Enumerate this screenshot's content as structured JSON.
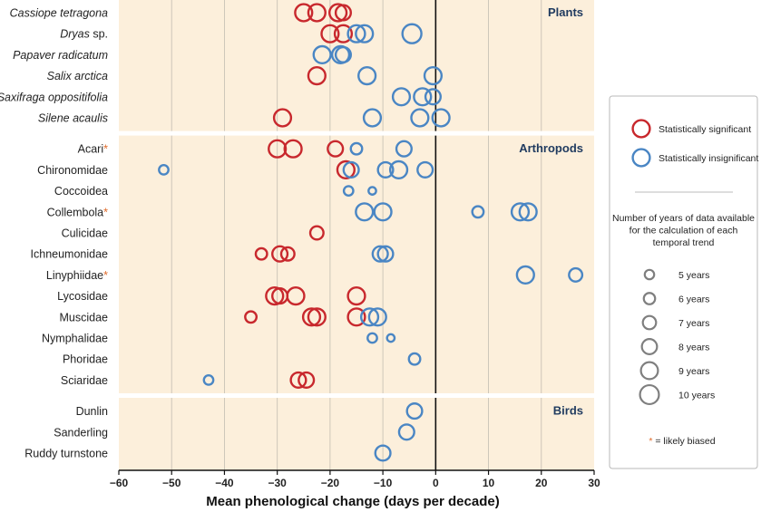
{
  "chart_data": {
    "type": "scatter",
    "xlabel": "Mean phenological change (days per decade)",
    "xlim": [
      -60,
      30
    ],
    "xticks": [
      "−60",
      "−50",
      "−40",
      "−30",
      "−20",
      "−10",
      "0",
      "10",
      "20",
      "30"
    ],
    "xtick_values": [
      -60,
      -50,
      -40,
      -30,
      -20,
      -10,
      0,
      10,
      20,
      30
    ],
    "colors": {
      "significant": "#c8282d",
      "insignificant": "#4a86c4",
      "asterisk": "#e06c2c",
      "group_title": "#1f3a5f",
      "panel_bg": "#fcefdb"
    },
    "groups": [
      {
        "title": "Plants",
        "taxa": [
          {
            "name": "Cassiope tetragona",
            "italic": true,
            "biased": false,
            "points": [
              {
                "x": -25,
                "sig": true,
                "years": 9
              },
              {
                "x": -22.5,
                "sig": true,
                "years": 9
              },
              {
                "x": -18.5,
                "sig": true,
                "years": 9
              },
              {
                "x": -17.5,
                "sig": true,
                "years": 8
              }
            ]
          },
          {
            "name": "Dryas",
            "suffix": " sp.",
            "italic": true,
            "biased": false,
            "points": [
              {
                "x": -20,
                "sig": true,
                "years": 9
              },
              {
                "x": -17.5,
                "sig": true,
                "years": 9
              },
              {
                "x": -15,
                "sig": false,
                "years": 9
              },
              {
                "x": -13.5,
                "sig": false,
                "years": 9
              },
              {
                "x": -4.5,
                "sig": false,
                "years": 10
              }
            ]
          },
          {
            "name": "Papaver radicatum",
            "italic": true,
            "biased": false,
            "points": [
              {
                "x": -21.5,
                "sig": false,
                "years": 9
              },
              {
                "x": -18,
                "sig": false,
                "years": 9
              },
              {
                "x": -17.5,
                "sig": false,
                "years": 8
              }
            ]
          },
          {
            "name": "Salix arctica",
            "italic": true,
            "biased": false,
            "points": [
              {
                "x": -22.5,
                "sig": true,
                "years": 9
              },
              {
                "x": -13,
                "sig": false,
                "years": 9
              },
              {
                "x": -0.5,
                "sig": false,
                "years": 9
              }
            ]
          },
          {
            "name": "Saxifraga oppositifolia",
            "italic": true,
            "biased": false,
            "points": [
              {
                "x": -6.5,
                "sig": false,
                "years": 9
              },
              {
                "x": -2.5,
                "sig": false,
                "years": 9
              },
              {
                "x": -0.5,
                "sig": false,
                "years": 8
              }
            ]
          },
          {
            "name": "Silene acaulis",
            "italic": true,
            "biased": false,
            "points": [
              {
                "x": -29,
                "sig": true,
                "years": 9
              },
              {
                "x": -12,
                "sig": false,
                "years": 9
              },
              {
                "x": -3,
                "sig": false,
                "years": 9
              },
              {
                "x": 1,
                "sig": false,
                "years": 9
              }
            ]
          }
        ]
      },
      {
        "title": "Arthropods",
        "taxa": [
          {
            "name": "Acari",
            "italic": false,
            "biased": true,
            "points": [
              {
                "x": -30,
                "sig": true,
                "years": 9
              },
              {
                "x": -27,
                "sig": true,
                "years": 9
              },
              {
                "x": -19,
                "sig": true,
                "years": 8
              },
              {
                "x": -15,
                "sig": false,
                "years": 6
              },
              {
                "x": -6,
                "sig": false,
                "years": 8
              }
            ]
          },
          {
            "name": "Chironomidae",
            "italic": false,
            "biased": false,
            "points": [
              {
                "x": -51.5,
                "sig": false,
                "years": 5
              },
              {
                "x": -17,
                "sig": true,
                "years": 9
              },
              {
                "x": -16,
                "sig": false,
                "years": 8
              },
              {
                "x": -9.5,
                "sig": false,
                "years": 8
              },
              {
                "x": -7,
                "sig": false,
                "years": 9
              },
              {
                "x": -2,
                "sig": false,
                "years": 8
              }
            ]
          },
          {
            "name": "Coccoidea",
            "italic": false,
            "biased": false,
            "points": [
              {
                "x": -16.5,
                "sig": false,
                "years": 5
              },
              {
                "x": -12,
                "sig": false,
                "years": 4
              }
            ]
          },
          {
            "name": "Collembola",
            "italic": false,
            "biased": true,
            "points": [
              {
                "x": -13.5,
                "sig": false,
                "years": 9
              },
              {
                "x": -10,
                "sig": false,
                "years": 9
              },
              {
                "x": 8,
                "sig": false,
                "years": 6
              },
              {
                "x": 16,
                "sig": false,
                "years": 9
              },
              {
                "x": 17.5,
                "sig": false,
                "years": 9
              }
            ]
          },
          {
            "name": "Culicidae",
            "italic": false,
            "biased": false,
            "points": [
              {
                "x": -22.5,
                "sig": true,
                "years": 7
              }
            ]
          },
          {
            "name": "Ichneumonidae",
            "italic": false,
            "biased": false,
            "points": [
              {
                "x": -33,
                "sig": true,
                "years": 6
              },
              {
                "x": -29.5,
                "sig": true,
                "years": 8
              },
              {
                "x": -28,
                "sig": true,
                "years": 7
              },
              {
                "x": -10.5,
                "sig": false,
                "years": 8
              },
              {
                "x": -9.5,
                "sig": false,
                "years": 8
              }
            ]
          },
          {
            "name": "Linyphiidae",
            "italic": false,
            "biased": true,
            "points": [
              {
                "x": 17,
                "sig": false,
                "years": 9
              },
              {
                "x": 26.5,
                "sig": false,
                "years": 7
              }
            ]
          },
          {
            "name": "Lycosidae",
            "italic": false,
            "biased": false,
            "points": [
              {
                "x": -30.5,
                "sig": true,
                "years": 9
              },
              {
                "x": -29.5,
                "sig": true,
                "years": 8
              },
              {
                "x": -26.5,
                "sig": true,
                "years": 9
              },
              {
                "x": -15,
                "sig": true,
                "years": 9
              }
            ]
          },
          {
            "name": "Muscidae",
            "italic": false,
            "biased": false,
            "points": [
              {
                "x": -35,
                "sig": true,
                "years": 6
              },
              {
                "x": -23.5,
                "sig": true,
                "years": 9
              },
              {
                "x": -22.5,
                "sig": true,
                "years": 9
              },
              {
                "x": -15,
                "sig": true,
                "years": 9
              },
              {
                "x": -12.5,
                "sig": false,
                "years": 9
              },
              {
                "x": -11,
                "sig": false,
                "years": 9
              }
            ]
          },
          {
            "name": "Nymphalidae",
            "italic": false,
            "biased": false,
            "points": [
              {
                "x": -12,
                "sig": false,
                "years": 5
              },
              {
                "x": -8.5,
                "sig": false,
                "years": 4
              }
            ]
          },
          {
            "name": "Phoridae",
            "italic": false,
            "biased": false,
            "points": [
              {
                "x": -4,
                "sig": false,
                "years": 6
              }
            ]
          },
          {
            "name": "Sciaridae",
            "italic": false,
            "biased": false,
            "points": [
              {
                "x": -43,
                "sig": false,
                "years": 5
              },
              {
                "x": -26,
                "sig": true,
                "years": 8
              },
              {
                "x": -24.5,
                "sig": true,
                "years": 8
              }
            ]
          }
        ]
      },
      {
        "title": "Birds",
        "taxa": [
          {
            "name": "Dunlin",
            "italic": false,
            "biased": false,
            "points": [
              {
                "x": -4,
                "sig": false,
                "years": 8
              }
            ]
          },
          {
            "name": "Sanderling",
            "italic": false,
            "biased": false,
            "points": [
              {
                "x": -5.5,
                "sig": false,
                "years": 8
              }
            ]
          },
          {
            "name": "Ruddy turnstone",
            "italic": false,
            "biased": false,
            "points": [
              {
                "x": -10,
                "sig": false,
                "years": 8
              }
            ]
          }
        ]
      }
    ],
    "legend": {
      "significant_label": "Statistically significant",
      "insignificant_label": "Statistically insignificant",
      "size_title": [
        "Number of years of data available",
        "for the calculation of each",
        "temporal trend"
      ],
      "sizes": [
        {
          "years": 5,
          "label": "5 years"
        },
        {
          "years": 6,
          "label": "6 years"
        },
        {
          "years": 7,
          "label": "7 years"
        },
        {
          "years": 8,
          "label": "8 years"
        },
        {
          "years": 9,
          "label": "9 years"
        },
        {
          "years": 10,
          "label": "10 years"
        }
      ],
      "asterisk": "*",
      "biased_label": " = likely biased"
    }
  }
}
